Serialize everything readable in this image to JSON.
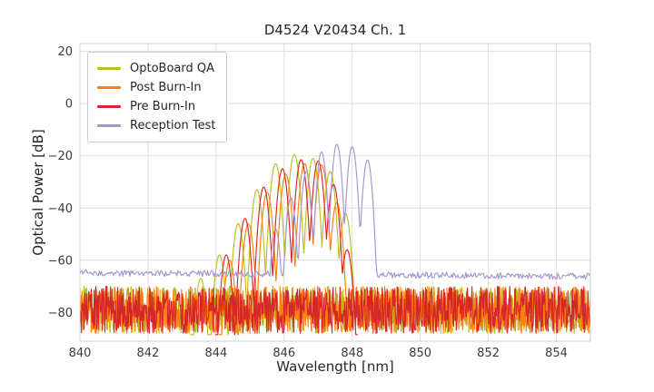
{
  "chart_data": {
    "type": "line",
    "title": "D4524 V20434 Ch. 1",
    "xlabel": "Wavelength [nm]",
    "ylabel": "Optical Power [dB]",
    "xlim": [
      840,
      855
    ],
    "ylim": [
      -91,
      23
    ],
    "xticks": [
      840,
      842,
      844,
      846,
      848,
      850,
      852,
      854
    ],
    "yticks": [
      20,
      0,
      -20,
      -40,
      -60,
      -80
    ],
    "grid": true,
    "grid_color": "#dedede",
    "axes_border_color": "#cfcfcf",
    "legend_position": "upper-left",
    "series": [
      {
        "name": "OptoBoard QA",
        "color": "#bcbd22",
        "noise_floor_db": -79,
        "noise_floor_slope_db_per_nm": 0,
        "noise_amplitude_db": 9,
        "floor_full_range": true,
        "mode_half_spacing_nm": 0.275,
        "valley_drop_db": 38,
        "modes": [
          [
            843.55,
            -67
          ],
          [
            844.1,
            -58
          ],
          [
            844.65,
            -46
          ],
          [
            845.2,
            -33
          ],
          [
            845.75,
            -23
          ],
          [
            846.3,
            -19.5
          ],
          [
            846.85,
            -21
          ],
          [
            847.35,
            -26
          ],
          [
            847.8,
            -42
          ]
        ]
      },
      {
        "name": "Post Burn-In",
        "color": "#ff7f0e",
        "noise_floor_db": -79,
        "noise_floor_slope_db_per_nm": 0,
        "noise_amplitude_db": 9,
        "floor_full_range": true,
        "mode_half_spacing_nm": 0.275,
        "valley_drop_db": 38,
        "modes": [
          [
            844.4,
            -60
          ],
          [
            844.95,
            -46
          ],
          [
            845.5,
            -34
          ],
          [
            846.05,
            -27
          ],
          [
            846.6,
            -23
          ],
          [
            847.1,
            -23.5
          ],
          [
            847.55,
            -38
          ]
        ]
      },
      {
        "name": "Pre Burn-In",
        "color": "#d62728",
        "noise_floor_db": -79,
        "noise_floor_slope_db_per_nm": 0,
        "noise_amplitude_db": 9,
        "floor_full_range": true,
        "mode_half_spacing_nm": 0.275,
        "valley_drop_db": 38,
        "modes": [
          [
            844.3,
            -58
          ],
          [
            844.85,
            -44
          ],
          [
            845.4,
            -32
          ],
          [
            845.95,
            -25
          ],
          [
            846.5,
            -21.5
          ],
          [
            847.0,
            -22
          ],
          [
            847.45,
            -31
          ],
          [
            847.85,
            -56
          ]
        ]
      },
      {
        "name": "Reception Test",
        "color": "#a695cc",
        "noise_floor_db": -64.8,
        "noise_floor_slope_db_per_nm": -0.09,
        "noise_amplitude_db": 1.2,
        "floor_full_range": false,
        "mode_half_spacing_nm": 0.225,
        "valley_drop_db": 32,
        "modes": [
          [
            845.75,
            -48
          ],
          [
            846.2,
            -36
          ],
          [
            846.65,
            -26
          ],
          [
            847.1,
            -18.5
          ],
          [
            847.55,
            -15.5
          ],
          [
            848.0,
            -16.5
          ],
          [
            848.45,
            -21.5
          ]
        ]
      }
    ]
  }
}
